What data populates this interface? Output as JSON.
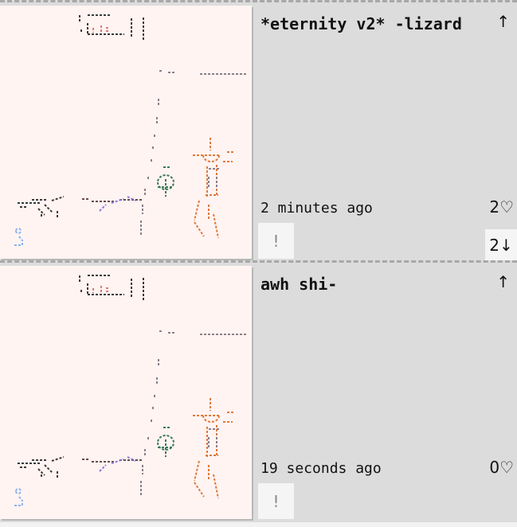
{
  "posts": [
    {
      "title": "*eternity v2* -lizard",
      "time": "2 minutes ago",
      "likes": "2♡",
      "report_label": "!",
      "upvote_icon": "↑",
      "replies": "2↓"
    },
    {
      "title": "awh shi-",
      "time": "19 seconds ago",
      "likes": "0♡",
      "report_label": "!",
      "upvote_icon": "↑"
    }
  ],
  "colors": {
    "canvas": "#fff4f2",
    "panel": "#dcdcdc",
    "figure_orange": "#e07a3c",
    "figure_green": "#3b7a57",
    "dark": "#3a3a3a",
    "line": "#8a7f88",
    "blue": "#8ab4f0"
  }
}
